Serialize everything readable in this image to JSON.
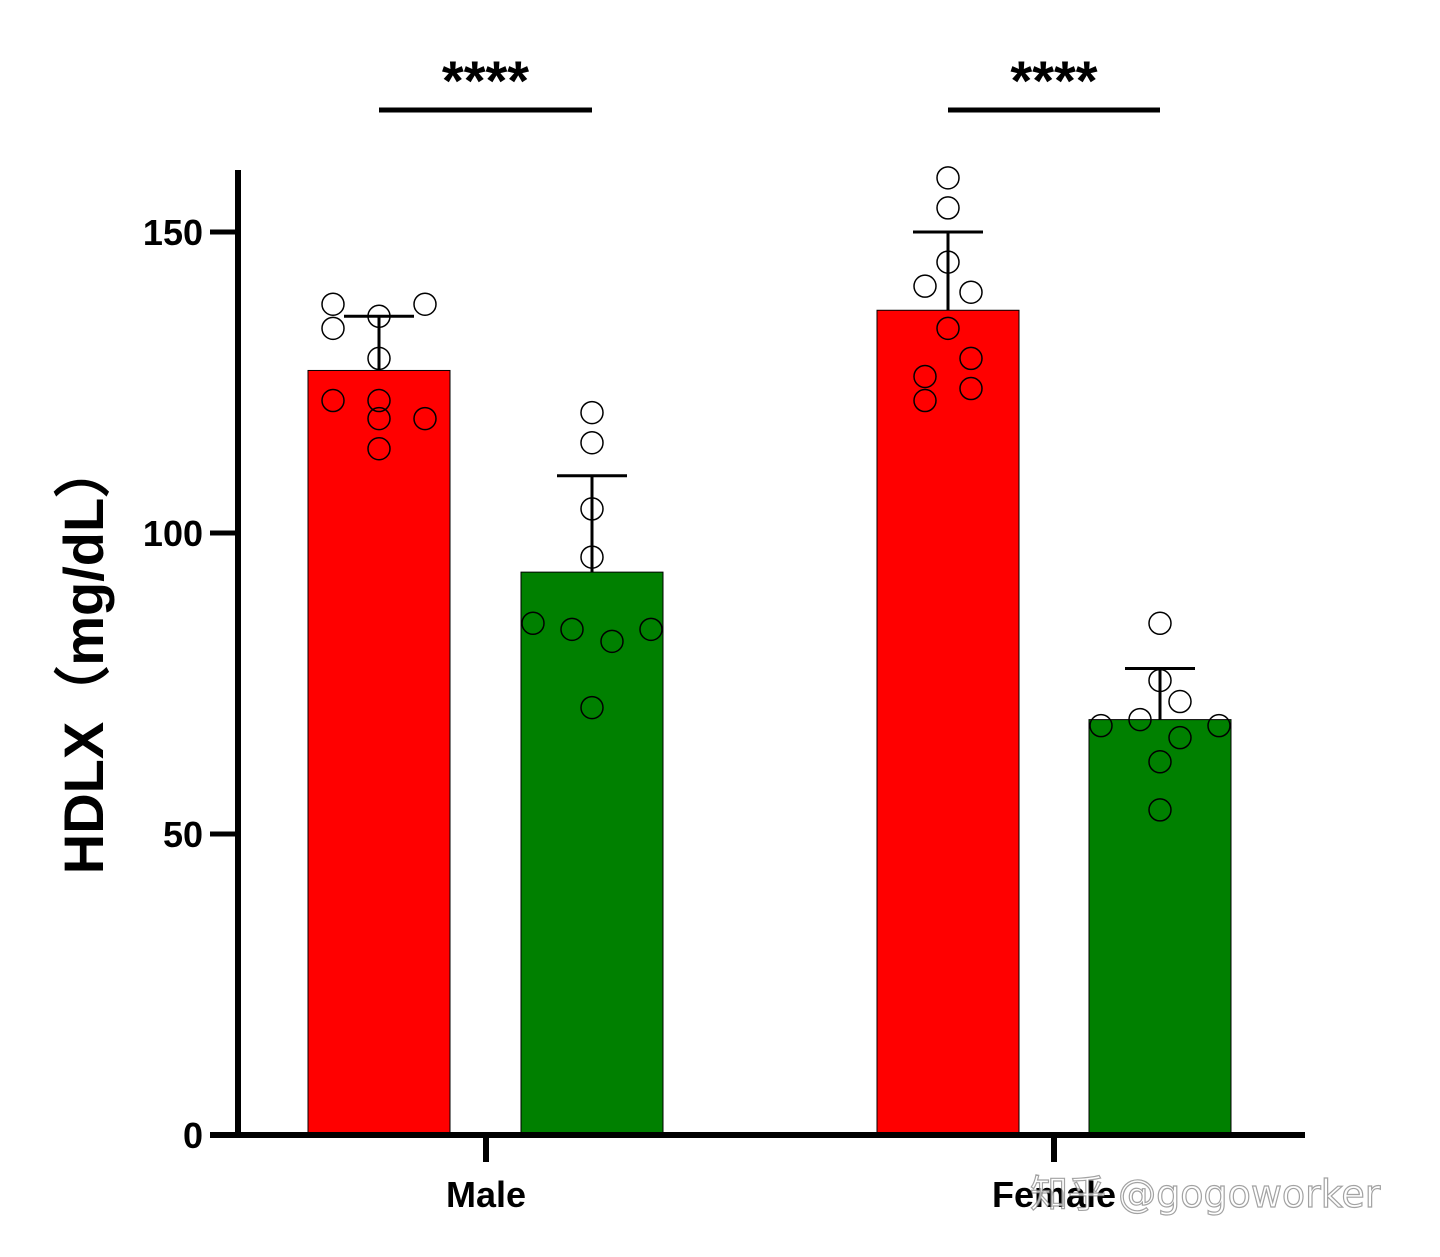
{
  "chart_data": {
    "type": "bar",
    "title": "",
    "xlabel": "",
    "ylabel": "HDLX（mg/dL）",
    "ylim": [
      0,
      160
    ],
    "yticks": [
      0,
      50,
      100,
      150
    ],
    "categories": [
      "Male",
      "Female"
    ],
    "colors": {
      "red": "#ff0000",
      "green": "#008000",
      "axis": "#000000"
    },
    "series": [
      {
        "name": "red",
        "color": "#ff0000",
        "values": [
          127,
          137
        ],
        "errors": [
          9,
          13
        ],
        "points": [
          [
            138,
            138,
            134,
            136,
            129,
            122,
            122,
            119,
            119,
            114
          ],
          [
            159,
            154,
            145,
            141,
            140,
            134,
            129,
            126,
            124,
            122
          ]
        ]
      },
      {
        "name": "green",
        "color": "#008000",
        "values": [
          93.5,
          69
        ],
        "errors": [
          16,
          8.5
        ],
        "points": [
          [
            120,
            115,
            104,
            96,
            85,
            84,
            84,
            82,
            71
          ],
          [
            85,
            75.5,
            72,
            69,
            68,
            68,
            66,
            62,
            54
          ]
        ]
      }
    ],
    "significance": [
      {
        "group": "Male",
        "label": "****"
      },
      {
        "group": "Female",
        "label": "****"
      }
    ]
  },
  "watermark": "知乎 @gogoworker"
}
